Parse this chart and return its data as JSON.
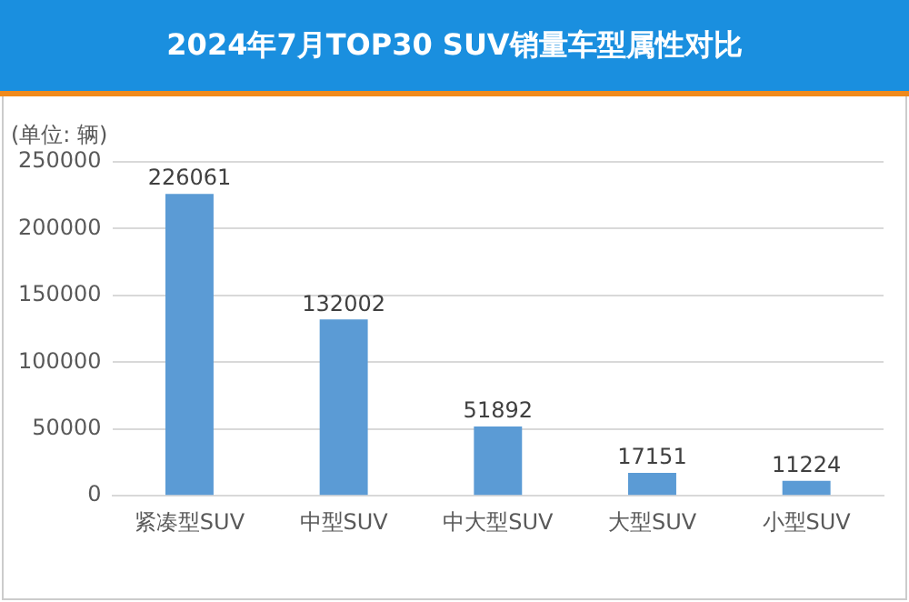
{
  "chart_data": {
    "type": "bar",
    "title": "2024年7月TOP30 SUV销量车型属性对比",
    "ylabel": "(单位: 辆)",
    "categories": [
      "紧凑型SUV",
      "中型SUV",
      "中大型SUV",
      "大型SUV",
      "小型SUV"
    ],
    "values": [
      226061,
      132002,
      51892,
      17151,
      11224
    ],
    "color": "#5b9bd5",
    "ylim": [
      0,
      250000
    ],
    "yticks": [
      0,
      50000,
      100000,
      150000,
      200000,
      250000
    ],
    "grid": "y",
    "data_labels": true,
    "legend": false
  }
}
